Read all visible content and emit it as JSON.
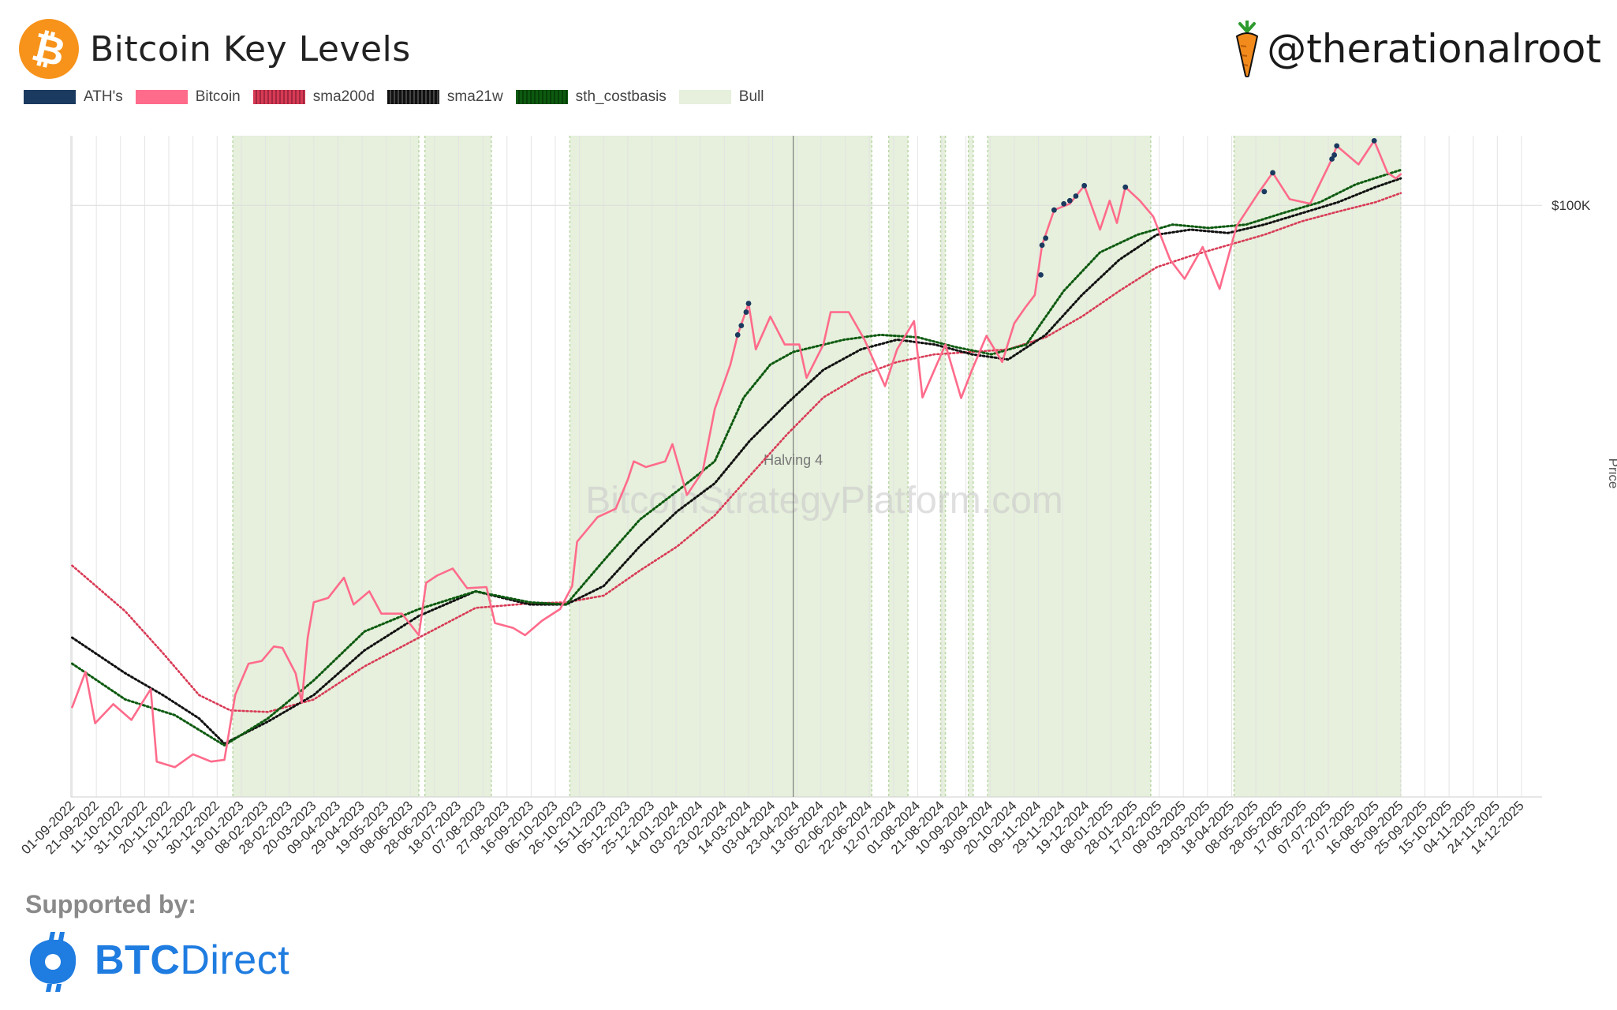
{
  "header": {
    "title": "Bitcoin Key Levels",
    "handle": "@therationalroot"
  },
  "footer": {
    "supported_label": "Supported by:",
    "sponsor_bold": "BTC",
    "sponsor_rest": "Direct"
  },
  "colors": {
    "ath": "#1b3a5f",
    "bitcoin": "#ff6b8b",
    "sma200d": "#d83a55",
    "sma21w": "#111111",
    "sth_costbasis": "#0d5a10",
    "bull": "#e6f0dc",
    "btc_orange": "#f7931a",
    "sponsor_blue": "#1f7ce0"
  },
  "chart_data": {
    "type": "line",
    "title": "Bitcoin Key Levels",
    "ylabel": "Price",
    "y_scale": "log",
    "ylim": [
      15000,
      125000
    ],
    "xlim": [
      "2022-08-31",
      "2025-12-31"
    ],
    "y_ticks": [
      {
        "value": 100000,
        "label": "$100K"
      }
    ],
    "x_tick_labels": [
      "01-09-2022",
      "21-09-2022",
      "11-10-2022",
      "31-10-2022",
      "20-11-2022",
      "10-12-2022",
      "30-12-2022",
      "19-01-2023",
      "08-02-2023",
      "28-02-2023",
      "20-03-2023",
      "09-04-2023",
      "29-04-2023",
      "19-05-2023",
      "08-06-2023",
      "28-06-2023",
      "18-07-2023",
      "07-08-2023",
      "27-08-2023",
      "16-09-2023",
      "06-10-2023",
      "26-10-2023",
      "15-11-2023",
      "05-12-2023",
      "25-12-2023",
      "14-01-2024",
      "03-02-2024",
      "23-02-2024",
      "14-03-2024",
      "03-04-2024",
      "23-04-2024",
      "13-05-2024",
      "02-06-2024",
      "22-06-2024",
      "12-07-2024",
      "01-08-2024",
      "21-08-2024",
      "10-09-2024",
      "30-09-2024",
      "20-10-2024",
      "09-11-2024",
      "29-11-2024",
      "19-12-2024",
      "08-01-2025",
      "28-01-2025",
      "17-02-2025",
      "09-03-2025",
      "29-03-2025",
      "18-04-2025",
      "08-05-2025",
      "28-05-2025",
      "17-06-2025",
      "07-07-2025",
      "27-07-2025",
      "16-08-2025",
      "05-09-2025",
      "25-09-2025",
      "15-10-2025",
      "04-11-2025",
      "24-11-2025",
      "14-12-2025"
    ],
    "legend": [
      "ATH's",
      "Bitcoin",
      "sma200d",
      "sma21w",
      "sth_costbasis",
      "Bull"
    ],
    "legend_position": "top-left",
    "grid": true,
    "annotations": [
      {
        "date": "2024-04-20",
        "text": "Halving 4"
      }
    ],
    "watermark": "BitcoinStrategyPlatform.com",
    "bull_periods": [
      [
        "2023-01-12",
        "2023-06-15"
      ],
      [
        "2023-06-20",
        "2023-08-14"
      ],
      [
        "2023-10-18",
        "2024-06-24"
      ],
      [
        "2024-07-08",
        "2024-07-24"
      ],
      [
        "2024-08-20",
        "2024-08-24"
      ],
      [
        "2024-09-12",
        "2024-09-16"
      ],
      [
        "2024-09-28",
        "2025-02-10"
      ],
      [
        "2025-04-20",
        "2025-09-05"
      ]
    ],
    "series": [
      {
        "name": "Bitcoin",
        "points": [
          [
            "2022-09-01",
            20000
          ],
          [
            "2022-09-12",
            22400
          ],
          [
            "2022-09-20",
            19000
          ],
          [
            "2022-10-05",
            20200
          ],
          [
            "2022-10-20",
            19200
          ],
          [
            "2022-11-05",
            21200
          ],
          [
            "2022-11-10",
            16800
          ],
          [
            "2022-11-25",
            16500
          ],
          [
            "2022-12-10",
            17200
          ],
          [
            "2022-12-25",
            16800
          ],
          [
            "2023-01-05",
            16900
          ],
          [
            "2023-01-14",
            20800
          ],
          [
            "2023-01-25",
            23000
          ],
          [
            "2023-02-05",
            23200
          ],
          [
            "2023-02-15",
            24300
          ],
          [
            "2023-02-22",
            24200
          ],
          [
            "2023-03-05",
            22300
          ],
          [
            "2023-03-10",
            20300
          ],
          [
            "2023-03-15",
            25000
          ],
          [
            "2023-03-20",
            28000
          ],
          [
            "2023-04-01",
            28400
          ],
          [
            "2023-04-14",
            30300
          ],
          [
            "2023-04-22",
            27800
          ],
          [
            "2023-05-05",
            29000
          ],
          [
            "2023-05-15",
            27000
          ],
          [
            "2023-06-01",
            27000
          ],
          [
            "2023-06-15",
            25200
          ],
          [
            "2023-06-21",
            29800
          ],
          [
            "2023-06-30",
            30500
          ],
          [
            "2023-07-13",
            31200
          ],
          [
            "2023-07-25",
            29300
          ],
          [
            "2023-08-10",
            29400
          ],
          [
            "2023-08-17",
            26200
          ],
          [
            "2023-09-01",
            25800
          ],
          [
            "2023-09-11",
            25200
          ],
          [
            "2023-09-25",
            26400
          ],
          [
            "2023-10-10",
            27400
          ],
          [
            "2023-10-20",
            29500
          ],
          [
            "2023-10-24",
            34000
          ],
          [
            "2023-11-10",
            36800
          ],
          [
            "2023-11-25",
            37800
          ],
          [
            "2023-12-05",
            41500
          ],
          [
            "2023-12-10",
            44000
          ],
          [
            "2023-12-20",
            43200
          ],
          [
            "2024-01-05",
            44000
          ],
          [
            "2024-01-11",
            46500
          ],
          [
            "2024-01-23",
            39500
          ],
          [
            "2024-02-05",
            42600
          ],
          [
            "2024-02-15",
            52000
          ],
          [
            "2024-02-28",
            60000
          ],
          [
            "2024-03-05",
            66000
          ],
          [
            "2024-03-14",
            73000
          ],
          [
            "2024-03-20",
            63000
          ],
          [
            "2024-04-01",
            70000
          ],
          [
            "2024-04-13",
            64000
          ],
          [
            "2024-04-25",
            64000
          ],
          [
            "2024-05-01",
            57500
          ],
          [
            "2024-05-15",
            64000
          ],
          [
            "2024-05-21",
            71000
          ],
          [
            "2024-06-05",
            71000
          ],
          [
            "2024-06-18",
            65000
          ],
          [
            "2024-07-05",
            56000
          ],
          [
            "2024-07-15",
            63000
          ],
          [
            "2024-07-29",
            69000
          ],
          [
            "2024-08-05",
            54000
          ],
          [
            "2024-08-24",
            64000
          ],
          [
            "2024-09-06",
            53900
          ],
          [
            "2024-09-15",
            59000
          ],
          [
            "2024-09-27",
            65800
          ],
          [
            "2024-10-10",
            60500
          ],
          [
            "2024-10-20",
            68500
          ],
          [
            "2024-10-29",
            72000
          ],
          [
            "2024-11-06",
            75000
          ],
          [
            "2024-11-12",
            88000
          ],
          [
            "2024-11-22",
            98500
          ],
          [
            "2024-12-05",
            100500
          ],
          [
            "2024-12-17",
            106500
          ],
          [
            "2024-12-30",
            92500
          ],
          [
            "2025-01-07",
            101500
          ],
          [
            "2025-01-13",
            94500
          ],
          [
            "2025-01-20",
            106000
          ],
          [
            "2025-02-01",
            101500
          ],
          [
            "2025-02-12",
            96500
          ],
          [
            "2025-02-26",
            84000
          ],
          [
            "2025-03-10",
            79000
          ],
          [
            "2025-03-25",
            87500
          ],
          [
            "2025-04-08",
            76500
          ],
          [
            "2025-04-22",
            93500
          ],
          [
            "2025-05-10",
            104000
          ],
          [
            "2025-05-22",
            111000
          ],
          [
            "2025-06-05",
            102000
          ],
          [
            "2025-06-22",
            100500
          ],
          [
            "2025-07-10",
            116000
          ],
          [
            "2025-07-14",
            121000
          ],
          [
            "2025-08-01",
            114000
          ],
          [
            "2025-08-14",
            123000
          ],
          [
            "2025-08-25",
            111000
          ],
          [
            "2025-09-01",
            109000
          ],
          [
            "2025-09-05",
            110500
          ]
        ]
      },
      {
        "name": "sth_costbasis",
        "points": [
          [
            "2022-09-01",
            23000
          ],
          [
            "2022-10-15",
            20500
          ],
          [
            "2022-11-25",
            19500
          ],
          [
            "2023-01-05",
            17700
          ],
          [
            "2023-02-10",
            19300
          ],
          [
            "2023-03-20",
            21800
          ],
          [
            "2023-05-01",
            25500
          ],
          [
            "2023-06-15",
            27400
          ],
          [
            "2023-08-01",
            29000
          ],
          [
            "2023-09-15",
            28000
          ],
          [
            "2023-10-15",
            27800
          ],
          [
            "2023-11-15",
            32000
          ],
          [
            "2023-12-15",
            36500
          ],
          [
            "2024-01-15",
            40000
          ],
          [
            "2024-02-15",
            44000
          ],
          [
            "2024-03-10",
            54000
          ],
          [
            "2024-04-01",
            60000
          ],
          [
            "2024-04-20",
            62500
          ],
          [
            "2024-06-01",
            65000
          ],
          [
            "2024-07-01",
            66000
          ],
          [
            "2024-08-01",
            65500
          ],
          [
            "2024-09-01",
            63500
          ],
          [
            "2024-10-01",
            62000
          ],
          [
            "2024-10-30",
            64000
          ],
          [
            "2024-11-30",
            76000
          ],
          [
            "2024-12-30",
            86000
          ],
          [
            "2025-01-30",
            91000
          ],
          [
            "2025-02-28",
            94000
          ],
          [
            "2025-03-30",
            93000
          ],
          [
            "2025-04-30",
            94000
          ],
          [
            "2025-05-30",
            97500
          ],
          [
            "2025-06-30",
            101000
          ],
          [
            "2025-07-30",
            107000
          ],
          [
            "2025-09-05",
            112000
          ]
        ]
      },
      {
        "name": "sma21w",
        "points": [
          [
            "2022-09-01",
            25000
          ],
          [
            "2022-10-15",
            22300
          ],
          [
            "2022-11-15",
            20800
          ],
          [
            "2022-12-15",
            19300
          ],
          [
            "2023-01-05",
            17800
          ],
          [
            "2023-02-10",
            19100
          ],
          [
            "2023-03-20",
            20800
          ],
          [
            "2023-05-01",
            24000
          ],
          [
            "2023-06-15",
            26800
          ],
          [
            "2023-08-01",
            29000
          ],
          [
            "2023-09-15",
            27800
          ],
          [
            "2023-10-15",
            27800
          ],
          [
            "2023-11-15",
            29500
          ],
          [
            "2023-12-15",
            33500
          ],
          [
            "2024-01-15",
            37500
          ],
          [
            "2024-02-15",
            41000
          ],
          [
            "2024-03-15",
            47000
          ],
          [
            "2024-04-15",
            53000
          ],
          [
            "2024-05-15",
            59000
          ],
          [
            "2024-06-15",
            63000
          ],
          [
            "2024-07-15",
            65000
          ],
          [
            "2024-08-15",
            64000
          ],
          [
            "2024-09-15",
            62000
          ],
          [
            "2024-10-15",
            61000
          ],
          [
            "2024-11-15",
            66000
          ],
          [
            "2024-12-15",
            75000
          ],
          [
            "2025-01-15",
            84000
          ],
          [
            "2025-02-15",
            91000
          ],
          [
            "2025-03-15",
            92500
          ],
          [
            "2025-04-15",
            91500
          ],
          [
            "2025-05-15",
            94000
          ],
          [
            "2025-06-15",
            97500
          ],
          [
            "2025-07-15",
            101000
          ],
          [
            "2025-08-15",
            106000
          ],
          [
            "2025-09-05",
            109000
          ]
        ]
      },
      {
        "name": "sma200d",
        "points": [
          [
            "2022-09-01",
            31500
          ],
          [
            "2022-10-15",
            27200
          ],
          [
            "2022-11-15",
            23800
          ],
          [
            "2022-12-15",
            20800
          ],
          [
            "2023-01-10",
            19800
          ],
          [
            "2023-02-10",
            19700
          ],
          [
            "2023-03-20",
            20500
          ],
          [
            "2023-05-01",
            22800
          ],
          [
            "2023-06-15",
            25000
          ],
          [
            "2023-08-01",
            27500
          ],
          [
            "2023-09-15",
            27900
          ],
          [
            "2023-10-15",
            28000
          ],
          [
            "2023-11-15",
            28600
          ],
          [
            "2023-12-15",
            31000
          ],
          [
            "2024-01-15",
            33500
          ],
          [
            "2024-02-15",
            37000
          ],
          [
            "2024-03-15",
            42000
          ],
          [
            "2024-04-15",
            48000
          ],
          [
            "2024-05-15",
            54000
          ],
          [
            "2024-06-15",
            58000
          ],
          [
            "2024-07-15",
            60500
          ],
          [
            "2024-08-15",
            62000
          ],
          [
            "2024-09-15",
            62500
          ],
          [
            "2024-10-15",
            63000
          ],
          [
            "2024-11-15",
            65500
          ],
          [
            "2024-12-15",
            70000
          ],
          [
            "2025-01-15",
            76000
          ],
          [
            "2025-02-15",
            82000
          ],
          [
            "2025-03-15",
            85000
          ],
          [
            "2025-04-15",
            88000
          ],
          [
            "2025-05-15",
            91000
          ],
          [
            "2025-06-15",
            95000
          ],
          [
            "2025-07-15",
            98000
          ],
          [
            "2025-08-15",
            101000
          ],
          [
            "2025-09-05",
            104000
          ]
        ]
      },
      {
        "name": "ATH's",
        "points": [
          [
            "2024-03-05",
            66000
          ],
          [
            "2024-03-08",
            68000
          ],
          [
            "2024-03-12",
            71000
          ],
          [
            "2024-03-14",
            73000
          ],
          [
            "2024-11-11",
            80000
          ],
          [
            "2024-11-12",
            88000
          ],
          [
            "2024-11-15",
            90000
          ],
          [
            "2024-11-22",
            98500
          ],
          [
            "2024-11-30",
            100500
          ],
          [
            "2024-12-05",
            101500
          ],
          [
            "2024-12-10",
            103000
          ],
          [
            "2024-12-17",
            106500
          ],
          [
            "2025-01-20",
            106000
          ],
          [
            "2025-05-15",
            104500
          ],
          [
            "2025-05-22",
            111000
          ],
          [
            "2025-07-10",
            116000
          ],
          [
            "2025-07-12",
            117500
          ],
          [
            "2025-07-14",
            121000
          ],
          [
            "2025-08-14",
            123000
          ]
        ]
      }
    ]
  }
}
